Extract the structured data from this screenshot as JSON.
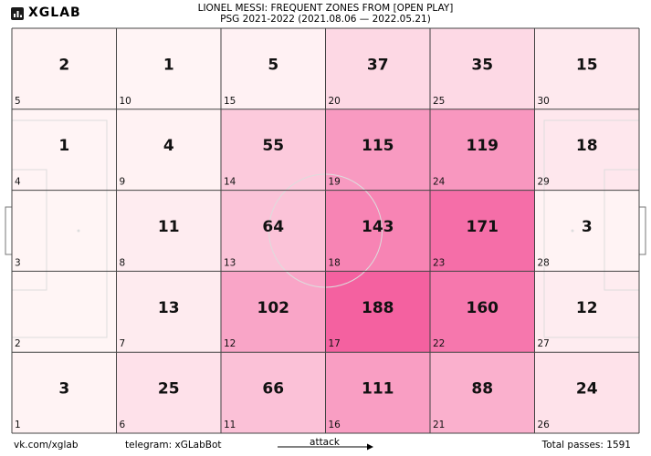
{
  "header": {
    "brand": "XGLAB",
    "title_line1": "LIONEL MESSI: FREQUENT ZONES FROM [OPEN PLAY]",
    "title_line2": "PSG 2021-2022 (2021.08.06 — 2022.05.21)"
  },
  "footer": {
    "site": "vk.com/xglab",
    "telegram": "telegram: xGLabBot",
    "direction_label": "attack",
    "total": "Total passes: 1591"
  },
  "colors": {
    "min": "#fff5f5",
    "max": "#f461a0",
    "grid": "#444444",
    "pitch_lines": "#dddddd"
  },
  "chart_data": {
    "type": "heatmap",
    "columns": 6,
    "rows": 5,
    "zones": [
      {
        "id": 5,
        "value": 2
      },
      {
        "id": 10,
        "value": 1
      },
      {
        "id": 15,
        "value": 5
      },
      {
        "id": 20,
        "value": 37
      },
      {
        "id": 25,
        "value": 35
      },
      {
        "id": 30,
        "value": 15
      },
      {
        "id": 4,
        "value": 1
      },
      {
        "id": 9,
        "value": 4
      },
      {
        "id": 14,
        "value": 55
      },
      {
        "id": 19,
        "value": 115
      },
      {
        "id": 24,
        "value": 119
      },
      {
        "id": 29,
        "value": 18
      },
      {
        "id": 3,
        "value": null
      },
      {
        "id": 8,
        "value": 11
      },
      {
        "id": 13,
        "value": 64
      },
      {
        "id": 18,
        "value": 143
      },
      {
        "id": 23,
        "value": 171
      },
      {
        "id": 28,
        "value": 3
      },
      {
        "id": 2,
        "value": null
      },
      {
        "id": 7,
        "value": 13
      },
      {
        "id": 12,
        "value": 102
      },
      {
        "id": 17,
        "value": 188
      },
      {
        "id": 22,
        "value": 160
      },
      {
        "id": 27,
        "value": 12
      },
      {
        "id": 1,
        "value": 3
      },
      {
        "id": 6,
        "value": 25
      },
      {
        "id": 11,
        "value": 66
      },
      {
        "id": 16,
        "value": 111
      },
      {
        "id": 21,
        "value": 88
      },
      {
        "id": 26,
        "value": 24
      }
    ],
    "min_value": 0,
    "max_value": 188
  }
}
